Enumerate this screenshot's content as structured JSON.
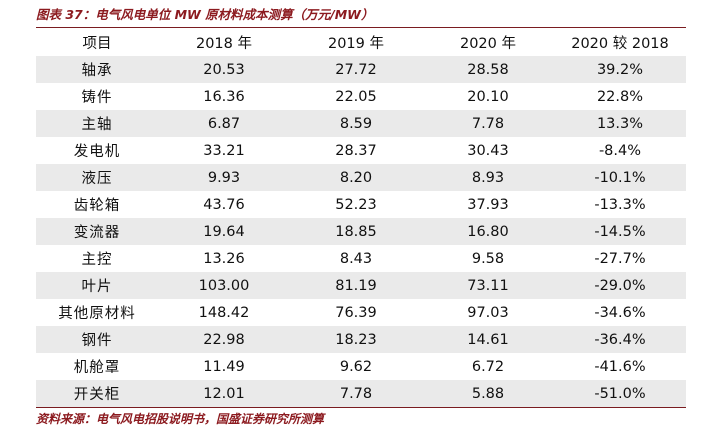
{
  "caption": "图表 37：电气风电单位 MW 原材料成本测算（万元/MW）",
  "table": {
    "headers": [
      "项目",
      "2018 年",
      "2019 年",
      "2020 年",
      "2020 较 2018"
    ],
    "rows": [
      [
        "轴承",
        "20.53",
        "27.72",
        "28.58",
        "39.2%"
      ],
      [
        "铸件",
        "16.36",
        "22.05",
        "20.10",
        "22.8%"
      ],
      [
        "主轴",
        "6.87",
        "8.59",
        "7.78",
        "13.3%"
      ],
      [
        "发电机",
        "33.21",
        "28.37",
        "30.43",
        "-8.4%"
      ],
      [
        "液压",
        "9.93",
        "8.20",
        "8.93",
        "-10.1%"
      ],
      [
        "齿轮箱",
        "43.76",
        "52.23",
        "37.93",
        "-13.3%"
      ],
      [
        "变流器",
        "19.64",
        "18.85",
        "16.80",
        "-14.5%"
      ],
      [
        "主控",
        "13.26",
        "8.43",
        "9.58",
        "-27.7%"
      ],
      [
        "叶片",
        "103.00",
        "81.19",
        "73.11",
        "-29.0%"
      ],
      [
        "其他原材料",
        "148.42",
        "76.39",
        "97.03",
        "-34.6%"
      ],
      [
        "钢件",
        "22.98",
        "18.23",
        "14.61",
        "-36.4%"
      ],
      [
        "机舱罩",
        "11.49",
        "9.62",
        "6.72",
        "-41.6%"
      ],
      [
        "开关柜",
        "12.01",
        "7.78",
        "5.88",
        "-51.0%"
      ]
    ]
  },
  "source": "资料来源：电气风电招股说明书，国盛证券研究所测算",
  "colors": {
    "accent": "#8c1a1f",
    "row_stripe": "#eaeaea",
    "rule": "#7a1c20"
  }
}
